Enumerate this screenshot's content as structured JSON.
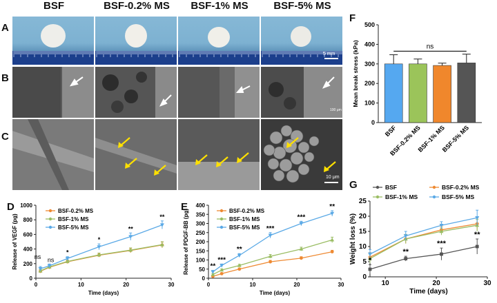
{
  "figure": {
    "panel_letters": [
      "A",
      "B",
      "C",
      "D",
      "E",
      "F",
      "G"
    ],
    "columns": [
      "BSF",
      "BSF-0.2% MS",
      "BSF-1% MS",
      "BSF-5% MS"
    ],
    "scalebars": {
      "a": "5 mm",
      "b": "100 μm",
      "c": "10 μm"
    },
    "colors": {
      "bsf": "#555555",
      "ms02": "#ee8a33",
      "ms1": "#9abd63",
      "ms5": "#5aa9e6",
      "bar_bsf": "#55a8f0",
      "bar_ms02": "#9bc45a",
      "bar_ms1": "#f0872c",
      "bar_ms5": "#555555",
      "arrow_yellow": "#ffe000"
    }
  },
  "chart_data": [
    {
      "id": "F",
      "type": "bar",
      "categories": [
        "BSF",
        "BSF-0.2% MS",
        "BSF-1% MS",
        "BSF-5% MS"
      ],
      "values": [
        300,
        300,
        292,
        305
      ],
      "errors": [
        47,
        25,
        12,
        45
      ],
      "ylabel": "Mean break stress (kPa)",
      "ylim": [
        0,
        500
      ],
      "yticks": [
        "0",
        "100",
        "200",
        "300",
        "400",
        "500"
      ],
      "significance": "ns"
    },
    {
      "id": "D",
      "type": "line",
      "xlabel": "Time (days)",
      "ylabel": "Release of VEGF (pg)",
      "xlim": [
        0,
        30
      ],
      "ylim": [
        0,
        1000
      ],
      "xticks": [
        "0",
        "10",
        "20",
        "30"
      ],
      "yticks": [
        "0",
        "200",
        "400",
        "600",
        "800",
        "1000"
      ],
      "x": [
        1,
        3,
        7,
        14,
        21,
        28
      ],
      "series": [
        {
          "name": "BSF-0.2% MS",
          "values": [
            95,
            150,
            225,
            315,
            380,
            455
          ],
          "errors": [
            20,
            20,
            20,
            25,
            30,
            40
          ]
        },
        {
          "name": "BSF-1% MS",
          "values": [
            100,
            155,
            230,
            320,
            385,
            460
          ],
          "errors": [
            20,
            20,
            20,
            25,
            30,
            40
          ]
        },
        {
          "name": "BSF-5% MS",
          "values": [
            130,
            170,
            270,
            430,
            570,
            730
          ],
          "errors": [
            30,
            25,
            25,
            40,
            50,
            55
          ]
        }
      ],
      "annotations": [
        "ns",
        "ns",
        "*",
        "*",
        "**",
        "**"
      ]
    },
    {
      "id": "E",
      "type": "line",
      "xlabel": "Time (days)",
      "ylabel": "Release of PDGF-BB (pg)",
      "xlim": [
        0,
        30
      ],
      "ylim": [
        0,
        400
      ],
      "xticks": [
        "0",
        "10",
        "20",
        "30"
      ],
      "yticks": [
        "0",
        "50",
        "100",
        "150",
        "200",
        "250",
        "300",
        "350",
        "400"
      ],
      "x": [
        1,
        3,
        7,
        14,
        21,
        28
      ],
      "series": [
        {
          "name": "BSF-0.2% MS",
          "values": [
            10,
            25,
            50,
            90,
            110,
            145
          ],
          "errors": [
            5,
            5,
            5,
            8,
            8,
            8
          ]
        },
        {
          "name": "BSF-1% MS",
          "values": [
            20,
            45,
            70,
            120,
            160,
            210
          ],
          "errors": [
            6,
            6,
            6,
            10,
            10,
            15
          ]
        },
        {
          "name": "BSF-5% MS",
          "values": [
            35,
            70,
            125,
            235,
            300,
            355
          ],
          "errors": [
            8,
            8,
            10,
            15,
            12,
            15
          ]
        }
      ],
      "annotations": [
        "**",
        "***",
        "**",
        "***",
        "***",
        "**"
      ]
    },
    {
      "id": "G",
      "type": "line",
      "xlabel": "Time (days)",
      "ylabel": "Weight loss (%)",
      "xlim": [
        7,
        30
      ],
      "ylim": [
        0,
        25
      ],
      "xticks": [
        "10",
        "20",
        "30"
      ],
      "yticks": [
        "0",
        "5",
        "10",
        "15",
        "20",
        "25"
      ],
      "x": [
        7,
        14,
        21,
        28
      ],
      "series": [
        {
          "name": "BSF",
          "values": [
            2.5,
            6,
            7.5,
            10
          ],
          "errors": [
            1.5,
            0.8,
            2,
            2.5
          ]
        },
        {
          "name": "BSF-0.2% MS",
          "values": [
            6.5,
            12.5,
            15.5,
            17.5
          ],
          "errors": [
            1.5,
            1.5,
            1.2,
            2
          ]
        },
        {
          "name": "BSF-1% MS",
          "values": [
            6,
            12.5,
            15,
            17
          ],
          "errors": [
            1.5,
            1.5,
            1.2,
            2
          ]
        },
        {
          "name": "BSF-5% MS",
          "values": [
            7.5,
            13.5,
            17,
            19.5
          ],
          "errors": [
            1.5,
            1.5,
            1.2,
            2.5
          ]
        }
      ],
      "annotations": [
        "*",
        "**",
        "***",
        "**"
      ]
    }
  ]
}
